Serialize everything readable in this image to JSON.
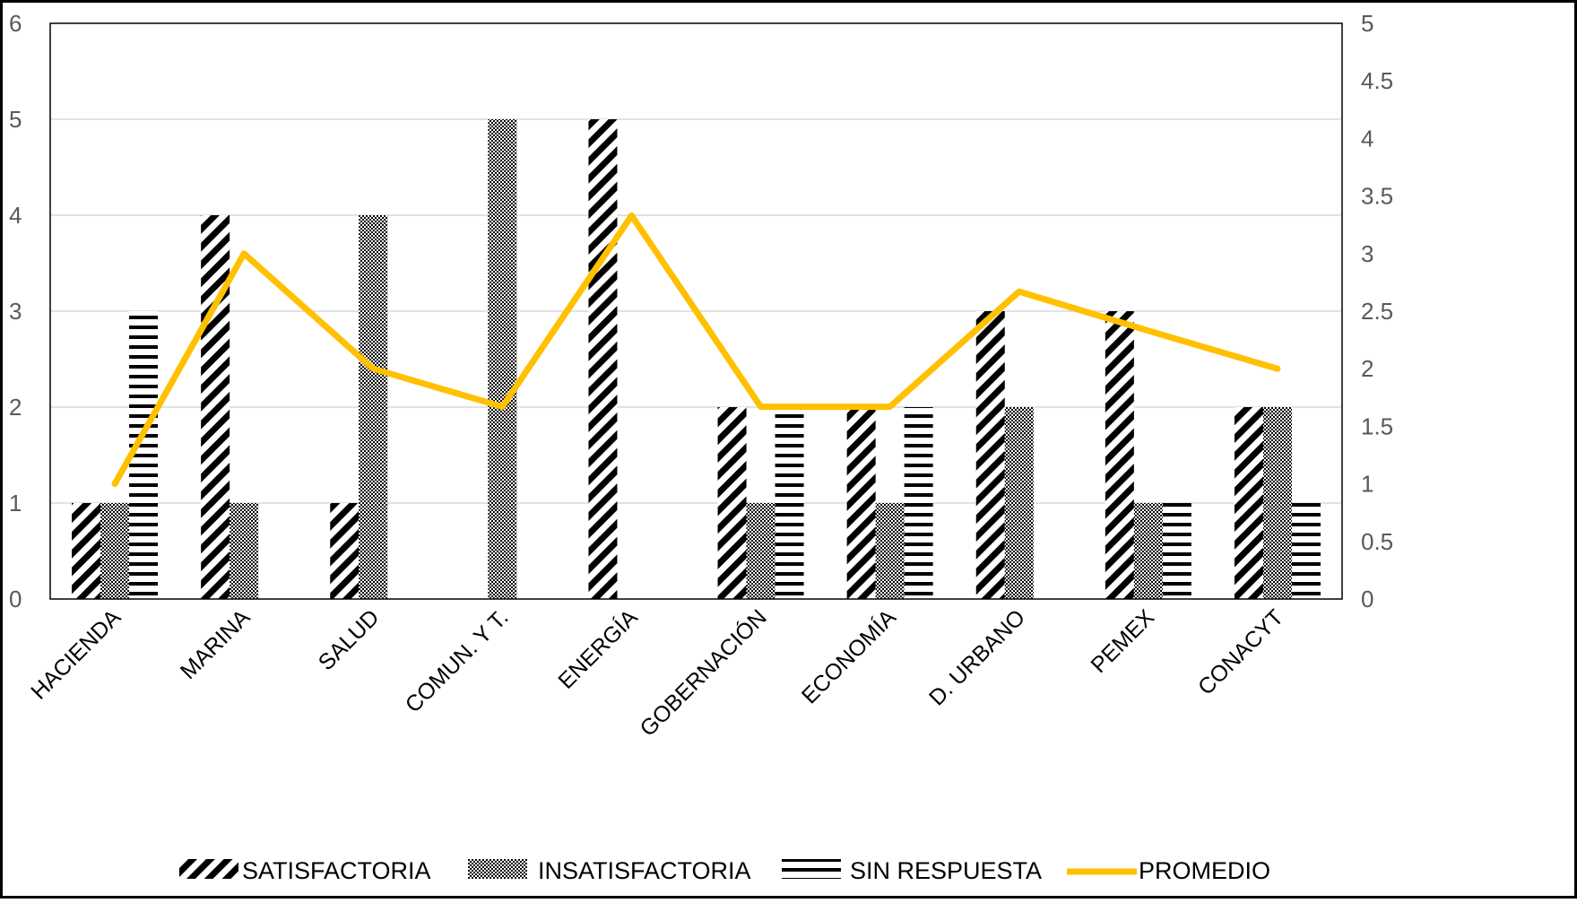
{
  "chart_data": {
    "type": "bar",
    "title": "",
    "xlabel": "",
    "ylabel": "",
    "categories": [
      "HACIENDA",
      "MARINA",
      "SALUD",
      "COMUN. Y T.",
      "ENERGÍA",
      "GOBERNACIÓN",
      "ECONOMÍA",
      "D. URBANO",
      "PEMEX",
      "CONACYT"
    ],
    "series": [
      {
        "name": "SATISFACTORIA",
        "values": [
          1,
          4,
          1,
          0,
          5,
          2,
          2,
          3,
          3,
          2
        ],
        "axis": "left",
        "pattern": "diagonal-stripes"
      },
      {
        "name": "INSATISFACTORIA",
        "values": [
          1,
          1,
          4,
          5,
          0,
          1,
          1,
          2,
          1,
          2
        ],
        "axis": "left",
        "pattern": "checker"
      },
      {
        "name": "SIN RESPUESTA",
        "values": [
          3,
          0,
          0,
          0,
          0,
          2,
          2,
          0,
          1,
          1
        ],
        "axis": "left",
        "pattern": "horizontal-stripes"
      },
      {
        "name": "PROMEDIO",
        "type": "line",
        "values": [
          1,
          3,
          2,
          1.67,
          3.33,
          1.67,
          1.67,
          2.67,
          2.33,
          2
        ],
        "axis": "right",
        "color": "#FFC000"
      }
    ],
    "ylim": [
      0,
      6
    ],
    "yticks": [
      "0",
      "1",
      "2",
      "3",
      "4",
      "5",
      "6"
    ],
    "y2lim": [
      0,
      5
    ],
    "y2ticks": [
      "0",
      "0.5",
      "1",
      "1.5",
      "2",
      "2.5",
      "3",
      "3.5",
      "4",
      "4.5",
      "5"
    ],
    "grid": true,
    "legend_position": "bottom"
  }
}
